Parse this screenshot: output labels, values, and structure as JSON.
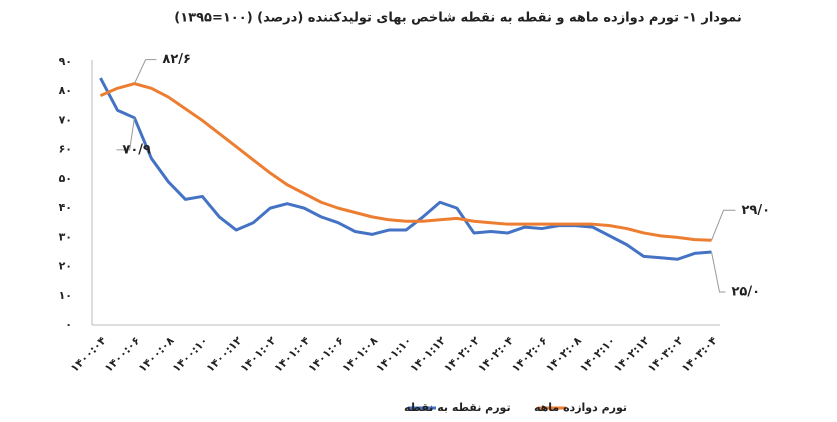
{
  "chart_data": {
    "type": "line",
    "title": "نمودار ۱- تورم دوازده ماهه و نقطه به نقطه شاخص بهای تولیدکننده (درصد) (۱۰۰=۱۳۹۵)",
    "categories": [
      "۱۴۰۰:۰۴",
      null,
      "۱۴۰۰:۰۶",
      null,
      "۱۴۰۰:۰۸",
      null,
      "۱۴۰۰:۱۰",
      null,
      "۱۴۰۰:۱۲",
      null,
      "۱۴۰۱:۰۲",
      null,
      "۱۴۰۱:۰۴",
      null,
      "۱۴۰۱:۰۶",
      null,
      "۱۴۰۱:۰۸",
      null,
      "۱۴۰۱:۱۰",
      null,
      "۱۴۰۱:۱۲",
      null,
      "۱۴۰۲:۰۲",
      null,
      "۱۴۰۲:۰۴",
      null,
      "۱۴۰۲:۰۶",
      null,
      "۱۴۰۲:۰۸",
      null,
      "۱۴۰۲:۱۰",
      null,
      "۱۴۰۲:۱۲",
      null,
      "۱۴۰۳:۰۲",
      null,
      "۱۴۰۳:۰۴"
    ],
    "series": [
      {
        "name": "تورم نقطه به نقطه",
        "color": "#4472c4",
        "values": [
          84.5,
          73.5,
          70.9,
          57,
          49,
          43,
          44,
          37,
          32.5,
          35,
          40,
          41.5,
          40,
          37,
          35,
          32,
          31,
          32.5,
          32.5,
          37,
          42,
          40,
          31.5,
          32,
          31.5,
          33.5,
          33,
          34,
          34,
          33.5,
          30.5,
          27.5,
          23.5,
          23,
          22.5,
          24.5,
          25.0
        ],
        "value_labels": [
          null,
          null,
          "۷۰/۹",
          null,
          null,
          null,
          null,
          null,
          null,
          null,
          null,
          null,
          null,
          null,
          null,
          null,
          null,
          null,
          null,
          null,
          null,
          null,
          null,
          null,
          null,
          null,
          null,
          null,
          null,
          null,
          null,
          null,
          null,
          null,
          null,
          null,
          "۲۵/۰"
        ]
      },
      {
        "name": "تورم دوازده ماهه",
        "color": "#ed7d31",
        "values": [
          78.5,
          81,
          82.6,
          81,
          78,
          74,
          70,
          65.5,
          61,
          56.5,
          52,
          48,
          45,
          42,
          40,
          38.5,
          37,
          36,
          35.5,
          35.5,
          36,
          36.5,
          35.5,
          35,
          34.5,
          34.5,
          34.5,
          34.5,
          34.5,
          34.5,
          34,
          33,
          31.5,
          30.5,
          30,
          29.2,
          29.0
        ],
        "value_labels": [
          null,
          null,
          "۸۲/۶",
          null,
          null,
          null,
          null,
          null,
          null,
          null,
          null,
          null,
          null,
          null,
          null,
          null,
          null,
          null,
          null,
          null,
          null,
          null,
          null,
          null,
          null,
          null,
          null,
          null,
          null,
          null,
          null,
          null,
          null,
          null,
          null,
          null,
          "۲۹/۰"
        ]
      }
    ],
    "ylim": [
      0,
      90
    ],
    "yticks": [
      {
        "value": 0,
        "label": "۰"
      },
      {
        "value": 10,
        "label": "۱۰"
      },
      {
        "value": 20,
        "label": "۲۰"
      },
      {
        "value": 30,
        "label": "۳۰"
      },
      {
        "value": 40,
        "label": "۴۰"
      },
      {
        "value": 50,
        "label": "۵۰"
      },
      {
        "value": 60,
        "label": "۶۰"
      },
      {
        "value": 70,
        "label": "۷۰"
      },
      {
        "value": 80,
        "label": "۸۰"
      },
      {
        "value": 90,
        "label": "۹۰"
      }
    ],
    "grid": false,
    "legend": "bottom"
  }
}
